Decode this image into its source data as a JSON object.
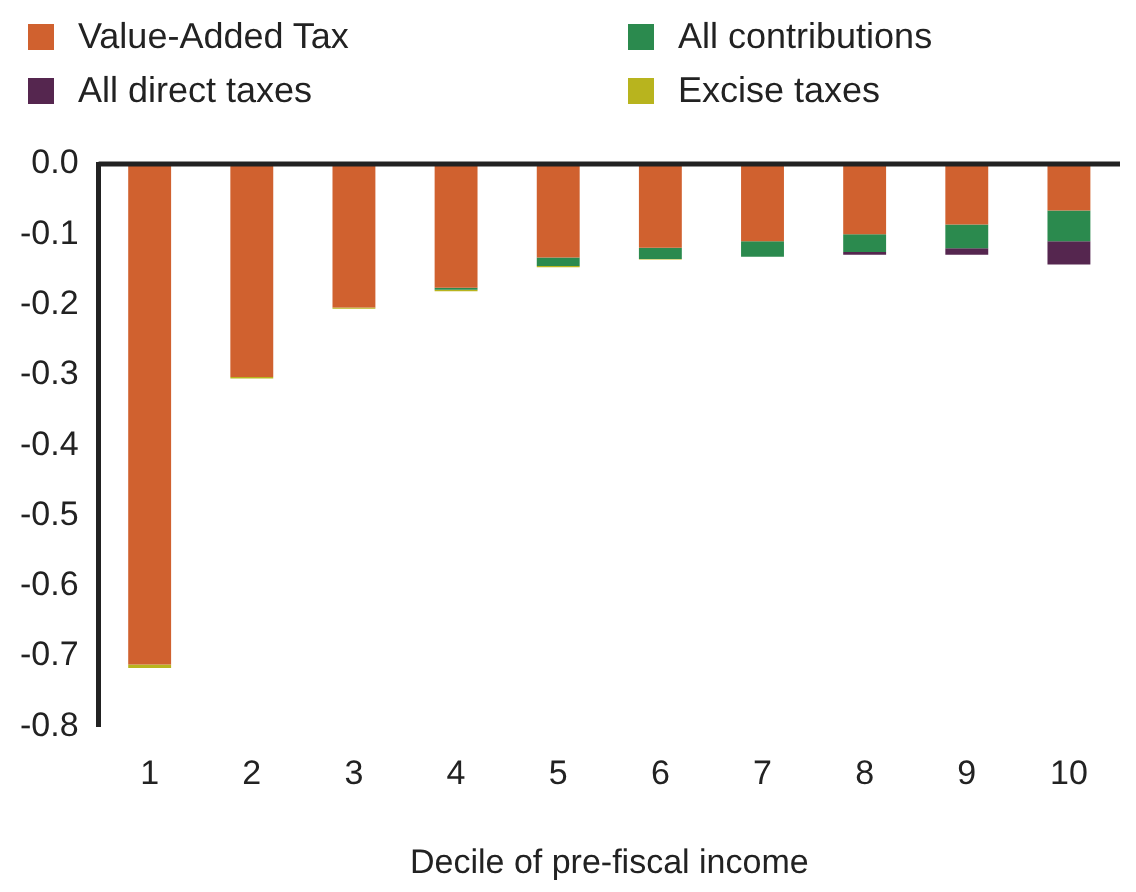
{
  "chart_data": {
    "type": "bar",
    "stacked": true,
    "xlabel": "Decile of pre-fiscal income",
    "categories": [
      "1",
      "2",
      "3",
      "4",
      "5",
      "6",
      "7",
      "8",
      "9",
      "10"
    ],
    "series": [
      {
        "name": "Value-Added Tax",
        "color": "#d0612f",
        "values": [
          -0.712,
          -0.303,
          -0.204,
          -0.176,
          -0.133,
          -0.119,
          -0.11,
          -0.1,
          -0.086,
          -0.066
        ]
      },
      {
        "name": "All contributions",
        "color": "#2b8a4e",
        "values": [
          0,
          0,
          0.0,
          -0.003,
          -0.012,
          -0.016,
          -0.022,
          -0.025,
          -0.034,
          -0.044
        ]
      },
      {
        "name": "All direct taxes",
        "color": "#55264f",
        "values": [
          0,
          0,
          0,
          0,
          0,
          0,
          0,
          -0.004,
          -0.009,
          -0.033
        ]
      },
      {
        "name": "Excise taxes",
        "color": "#b8b41e",
        "values": [
          -0.005,
          -0.002,
          -0.002,
          -0.002,
          -0.002,
          -0.001,
          null,
          null,
          null,
          null
        ]
      }
    ],
    "ylim": [
      -0.8,
      0.0
    ],
    "yticks": [
      {
        "value": -0.8,
        "label": "-0.8"
      },
      {
        "value": -0.7,
        "label": "-0.7"
      },
      {
        "value": -0.6,
        "label": "-0.6"
      },
      {
        "value": -0.5,
        "label": "-0.5"
      },
      {
        "value": -0.4,
        "label": "-0.4"
      },
      {
        "value": -0.3,
        "label": "-0.3"
      },
      {
        "value": -0.2,
        "label": "-0.2"
      },
      {
        "value": -0.1,
        "label": "-0.1"
      },
      {
        "value": 0.0,
        "label": "0.0"
      }
    ],
    "grid": false,
    "legend": "top"
  }
}
